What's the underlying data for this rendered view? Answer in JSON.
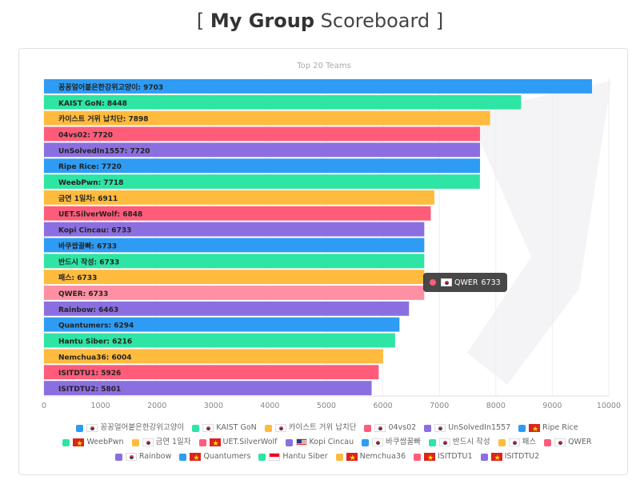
{
  "page": {
    "title_open": "[",
    "title_bold": "My Group",
    "title_rest": "Scoreboard",
    "title_close": "]"
  },
  "chart_data": {
    "type": "bar",
    "orientation": "horizontal",
    "title": "Top 20 Teams",
    "xlim": [
      0,
      10000
    ],
    "x_ticks": [
      0,
      1000,
      2000,
      3000,
      4000,
      5000,
      6000,
      7000,
      8000,
      9000,
      10000
    ],
    "grid": true,
    "legend_placement": "bottom",
    "categories": [
      "꽁꽁얼어붙은한강위고양이",
      "KAIST GoN",
      "카이스트 거위 납치단",
      "04vs02",
      "UnSolvedIn1557",
      "Ripe Rice",
      "WeebPwn",
      "금연 1일차",
      "UET.SilverWolf",
      "Kopi Cincau",
      "바쿠쌉꿀빠",
      "반드시 작성",
      "패스",
      "QWER",
      "Rainbow",
      "Quantumers",
      "Hantu Siber",
      "Nemchua36",
      "ISITDTU1",
      "ISITDTU2"
    ],
    "values": [
      9703,
      8448,
      7898,
      7720,
      7720,
      7720,
      7718,
      6911,
      6848,
      6733,
      6733,
      6733,
      6733,
      6733,
      6463,
      6294,
      6216,
      6004,
      5926,
      5801
    ],
    "bar_labels": [
      "꽁꽁얼어붙은한강위고양이: 9703",
      "KAIST GoN: 8448",
      "카이스트 거위 납치단: 7898",
      "04vs02: 7720",
      "UnSolvedIn1557: 7720",
      "Ripe Rice: 7720",
      "WeebPwn: 7718",
      "금연 1일차: 6911",
      "UET.SilverWolf: 6848",
      "Kopi Cincau: 6733",
      "바쿠쌉꿀빠: 6733",
      "반드시 작성: 6733",
      "패스: 6733",
      "QWER: 6733",
      "Rainbow: 6463",
      "Quantumers: 6294",
      "Hantu Siber: 6216",
      "Nemchua36: 6004",
      "ISITDTU1: 5926",
      "ISITDTU2: 5801"
    ],
    "flags": [
      "kr",
      "kr",
      "kr",
      "kr",
      "kr",
      "vn",
      "vn",
      "kr",
      "vn",
      "us",
      "kr",
      "kr",
      "kr",
      "kr",
      "kr",
      "vn",
      "id",
      "vn",
      "vn",
      "vn"
    ],
    "colors": [
      "#2e9cf4",
      "#2ee5a3",
      "#ffbb3d",
      "#ff5c7a",
      "#8b6fe0"
    ],
    "highlight_color": "#ff90a4",
    "highlight_index": 13
  },
  "tooltip": {
    "team": "QWER",
    "value": "6733",
    "flag": "kr"
  }
}
